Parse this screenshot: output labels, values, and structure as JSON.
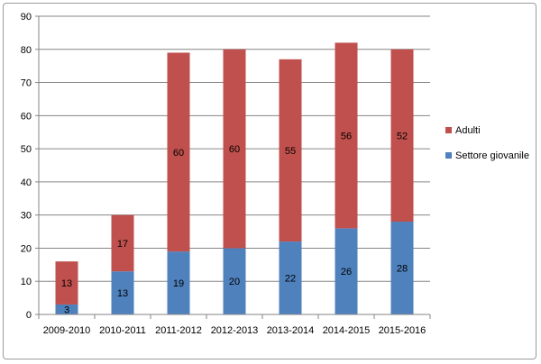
{
  "chart_data": {
    "type": "bar",
    "stacked": true,
    "categories": [
      "2009-2010",
      "2010-2011",
      "2011-2012",
      "2012-2013",
      "2013-2014",
      "2014-2015",
      "2015-2016"
    ],
    "series": [
      {
        "name": "Settore giovanile",
        "values": [
          3,
          13,
          19,
          20,
          22,
          26,
          28
        ],
        "color": "#4f81bd"
      },
      {
        "name": "Adulti",
        "values": [
          13,
          17,
          60,
          60,
          55,
          56,
          52
        ],
        "color": "#c0504d"
      }
    ],
    "data_labels": {
      "Settore giovanile": [
        "3",
        "13",
        "19",
        "20",
        "22",
        "26",
        "28"
      ],
      "Adulti": [
        "13",
        "17",
        "60",
        "60",
        "55",
        "56",
        "52"
      ]
    },
    "ylim": [
      0,
      90
    ],
    "yticks": [
      0,
      10,
      20,
      30,
      40,
      50,
      60,
      70,
      80,
      90
    ],
    "grid": true,
    "legend": "right",
    "legend_order": [
      "Adulti",
      "Settore giovanile"
    ],
    "title": "",
    "xlabel": "",
    "ylabel": ""
  }
}
